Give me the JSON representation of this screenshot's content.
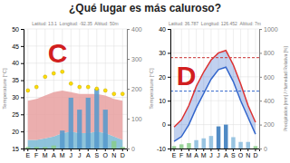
{
  "title": "¿Qué lugar es más caluroso?",
  "chart_data": [
    {
      "type": "area",
      "subtitle": "Latitud: 13.1  Longitud: -92.35  Altitud: 50m",
      "annotations": [
        {
          "text": "C",
          "color": "#cc0000"
        }
      ],
      "ylabel": "Temperature [°C]",
      "categories": [
        "E",
        "F",
        "M",
        "A",
        "M",
        "J",
        "J",
        "A",
        "S",
        "O",
        "N",
        "D"
      ],
      "series": [
        {
          "type": "area",
          "color": "#7ab8d4",
          "values": [
            17.5,
            17.5,
            18.0,
            18.5,
            19.5,
            20.0,
            19.5,
            19.5,
            20.0,
            19.5,
            18.5,
            17.5
          ]
        },
        {
          "type": "area",
          "color": "#e8a0a0",
          "values": [
            29,
            29.5,
            30.5,
            31.5,
            32.0,
            31.5,
            31.0,
            31.0,
            31.0,
            30.5,
            29.5,
            29.0
          ]
        },
        {
          "type": "scatter",
          "color": "#ffdd00",
          "values": [
            32,
            33,
            36,
            37,
            37.5,
            34,
            33,
            33,
            32.5,
            32,
            31,
            31
          ]
        },
        {
          "type": "bar",
          "axis": "y2",
          "colors": [
            "#88cc88",
            "#88cc88",
            "#88cc88",
            "#88cc88",
            "#5599cc",
            "#5599cc",
            "#5599cc",
            "#5599cc",
            "#5599cc",
            "#5599cc",
            "#88cc88",
            "#88cc88"
          ],
          "values": [
            5,
            5,
            5,
            10,
            60,
            170,
            130,
            170,
            200,
            130,
            25,
            5
          ]
        }
      ],
      "ylim": [
        15,
        50
      ],
      "yticks": [
        15,
        20,
        25,
        30,
        35,
        40,
        45,
        50
      ],
      "y2lim": [
        0,
        400
      ],
      "y2ticks": [
        0,
        100,
        200,
        300,
        400
      ],
      "grid": true
    },
    {
      "type": "line",
      "subtitle": "Latitud: 36.787  Longitud: 126.452  Altitud: 7m",
      "annotations": [
        {
          "text": "D",
          "color": "#cc0000"
        }
      ],
      "ylabel": "Temperature [°C]",
      "y2label": "Precipitation [mm] / Humedad Relativa [%]",
      "categories": [
        "E",
        "F",
        "M",
        "A",
        "M",
        "J",
        "J",
        "A",
        "S",
        "O",
        "N",
        "D"
      ],
      "reference_lines": [
        {
          "value": 28,
          "color": "#cc3333",
          "line_style": "dashed"
        },
        {
          "value": 14,
          "color": "#3366cc",
          "line_style": "dashed"
        }
      ],
      "series": [
        {
          "type": "line",
          "color": "#3366cc",
          "values": [
            -7,
            -5,
            0,
            7,
            13,
            19,
            23,
            24,
            18,
            10,
            3,
            -4
          ]
        },
        {
          "type": "line",
          "color": "#dd3333",
          "values": [
            -1,
            2,
            8,
            16,
            22,
            27,
            30,
            31,
            25,
            17,
            8,
            1
          ]
        },
        {
          "type": "bar",
          "axis": "y2",
          "colors": [
            "#88cc88",
            "#88cc88",
            "#88cc88",
            "#88bbdd",
            "#88bbdd",
            "#88bbdd",
            "#3377bb",
            "#3377bb",
            "#88bbdd",
            "#88bbdd",
            "#88bbdd",
            "#88cc88"
          ],
          "values": [
            20,
            35,
            45,
            70,
            85,
            105,
            185,
            200,
            95,
            55,
            55,
            20
          ]
        }
      ],
      "ylim": [
        -10,
        40
      ],
      "yticks": [
        -10,
        0,
        10,
        20,
        30,
        40
      ],
      "y2lim": [
        0,
        1000
      ],
      "y2ticks": [
        0,
        200,
        400,
        600,
        800,
        1000
      ],
      "grid": true
    }
  ]
}
